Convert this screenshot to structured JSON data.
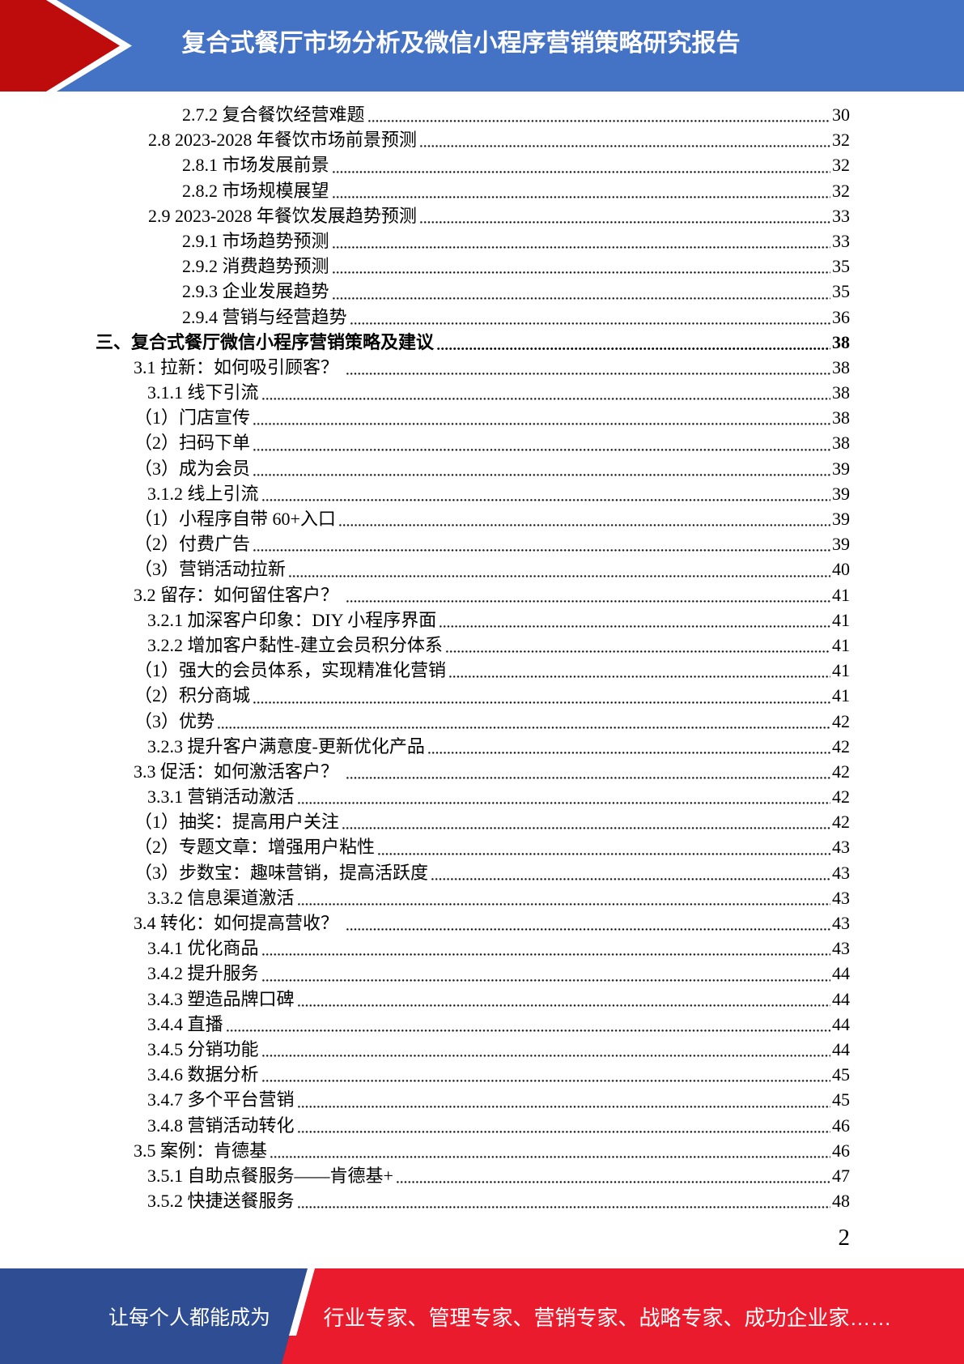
{
  "header": {
    "title": "复合式餐厅市场分析及微信小程序营销策略研究报告"
  },
  "toc": {
    "entries": [
      {
        "level": "sub2",
        "text": "2.7.2 复合餐饮经营难题",
        "page": "30"
      },
      {
        "level": "sec2",
        "text": "2.8 2023-2028 年餐饮市场前景预测",
        "page": "32"
      },
      {
        "level": "sub2",
        "text": "2.8.1 市场发展前景",
        "page": "32"
      },
      {
        "level": "sub2",
        "text": "2.8.2 市场规模展望",
        "page": "32"
      },
      {
        "level": "sec2",
        "text": "2.9 2023-2028 年餐饮发展趋势预测",
        "page": "33"
      },
      {
        "level": "sub2",
        "text": "2.9.1 市场趋势预测",
        "page": "33"
      },
      {
        "level": "sub2",
        "text": "2.9.2 消费趋势预测",
        "page": "35"
      },
      {
        "level": "sub2",
        "text": "2.9.3 企业发展趋势",
        "page": "35"
      },
      {
        "level": "sub2",
        "text": "2.9.4 营销与经营趋势",
        "page": "36"
      },
      {
        "level": "chapter",
        "text": "三、复合式餐厅微信小程序营销策略及建议",
        "page": "38"
      },
      {
        "level": "sec3",
        "text": "3.1 拉新：如何吸引顾客？ ",
        "page": "38"
      },
      {
        "level": "sub3",
        "text": "3.1.1 线下引流",
        "page": "38"
      },
      {
        "level": "item",
        "text": "（1）门店宣传",
        "page": "38"
      },
      {
        "level": "item",
        "text": "（2）扫码下单",
        "page": "38"
      },
      {
        "level": "item",
        "text": "（3）成为会员",
        "page": "39"
      },
      {
        "level": "sub3",
        "text": "3.1.2 线上引流",
        "page": "39"
      },
      {
        "level": "item",
        "text": "（1）小程序自带 60+入口",
        "page": "39"
      },
      {
        "level": "item",
        "text": "（2）付费广告",
        "page": "39"
      },
      {
        "level": "item",
        "text": "（3）营销活动拉新",
        "page": "40"
      },
      {
        "level": "sec3",
        "text": "3.2 留存：如何留住客户？ ",
        "page": "41"
      },
      {
        "level": "sub3",
        "text": "3.2.1 加深客户印象：DIY 小程序界面",
        "page": "41"
      },
      {
        "level": "sub3",
        "text": "3.2.2 增加客户黏性-建立会员积分体系",
        "page": "41"
      },
      {
        "level": "item",
        "text": "（1）强大的会员体系，实现精准化营销",
        "page": "41"
      },
      {
        "level": "item",
        "text": "（2）积分商城",
        "page": "41"
      },
      {
        "level": "item",
        "text": "（3）优势",
        "page": "42"
      },
      {
        "level": "sub3",
        "text": "3.2.3 提升客户满意度-更新优化产品",
        "page": "42"
      },
      {
        "level": "sec3",
        "text": "3.3 促活：如何激活客户？ ",
        "page": "42"
      },
      {
        "level": "sub3",
        "text": "3.3.1 营销活动激活",
        "page": "42"
      },
      {
        "level": "item",
        "text": "（1）抽奖：提高用户关注",
        "page": "42"
      },
      {
        "level": "item",
        "text": "（2）专题文章：增强用户粘性",
        "page": "43"
      },
      {
        "level": "item",
        "text": "（3）步数宝：趣味营销，提高活跃度",
        "page": "43"
      },
      {
        "level": "sub3",
        "text": "3.3.2 信息渠道激活",
        "page": "43"
      },
      {
        "level": "sec3",
        "text": "3.4 转化：如何提高营收？ ",
        "page": "43"
      },
      {
        "level": "sub3",
        "text": "3.4.1 优化商品",
        "page": "43"
      },
      {
        "level": "sub3",
        "text": "3.4.2 提升服务",
        "page": "44"
      },
      {
        "level": "sub3",
        "text": "3.4.3 塑造品牌口碑",
        "page": "44"
      },
      {
        "level": "sub3",
        "text": "3.4.4 直播",
        "page": "44"
      },
      {
        "level": "sub3",
        "text": "3.4.5 分销功能",
        "page": "44"
      },
      {
        "level": "sub3",
        "text": "3.4.6 数据分析",
        "page": "45"
      },
      {
        "level": "sub3",
        "text": "3.4.7 多个平台营销",
        "page": "45"
      },
      {
        "level": "sub3",
        "text": "3.4.8 营销活动转化",
        "page": "46"
      },
      {
        "level": "sec3",
        "text": "3.5 案例：肯德基",
        "page": "46"
      },
      {
        "level": "sub3",
        "text": "3.5.1 自助点餐服务——肯德基+",
        "page": "47"
      },
      {
        "level": "sub3",
        "text": "3.5.2 快捷送餐服务",
        "page": "48"
      }
    ]
  },
  "page_footer": {
    "page_number": "2"
  },
  "footer": {
    "left_text": "让每个人都能成为",
    "right_text": "行业专家、管理专家、营销专家、战略专家、成功企业家……"
  },
  "colors": {
    "header_blue": "#4472C4",
    "arrow_red": "#BE0B0C",
    "footer_blue": "#2E4D92",
    "footer_red": "#E91B2C",
    "text_black": "#000000"
  }
}
